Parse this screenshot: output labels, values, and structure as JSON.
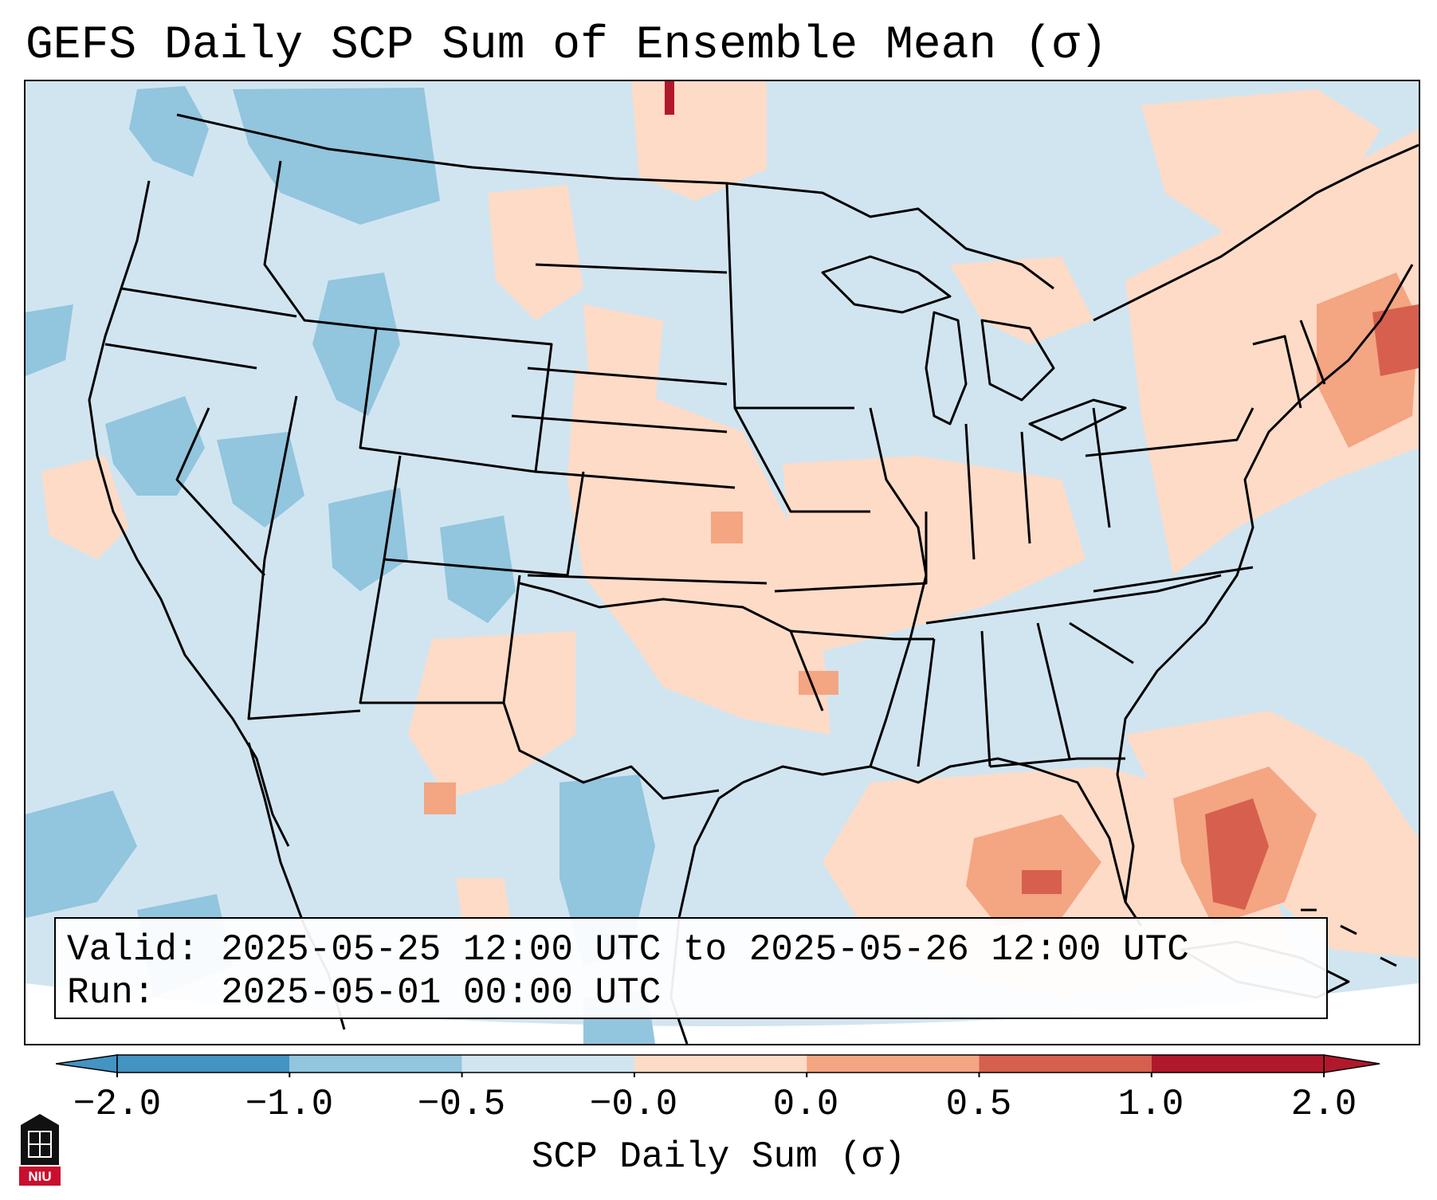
{
  "title": "GEFS Daily SCP Sum of Ensemble Mean (σ)",
  "info": {
    "valid_label": "Valid:",
    "valid_value": "2025-05-25 12:00 UTC to 2025-05-26 12:00 UTC",
    "run_label": "Run:",
    "run_value": "2025-05-01 00:00 UTC"
  },
  "colorbar": {
    "title": "SCP Daily Sum (σ)",
    "ticks": [
      "−2.0",
      "−1.0",
      "−0.5",
      "−0.0",
      "0.0",
      "0.5",
      "1.0",
      "2.0"
    ],
    "bin_colors": [
      "#4393c3",
      "#92c5de",
      "#d1e5f0",
      "#f7f7f7",
      "#fddbc7",
      "#f4a582",
      "#d6604d",
      "#b2182b"
    ],
    "extend": "both"
  },
  "logo": {
    "text": "NIU",
    "colors": {
      "banner": "#c8102e",
      "shield": "#111111"
    }
  },
  "colors": {
    "neutral": "#d1e5f0",
    "neg_light": "#92c5de",
    "pos_light": "#fddbc7",
    "pos_mid": "#f4a582",
    "pos_strong": "#d6604d",
    "pos_max": "#b2182b",
    "boundaries": "#000000"
  }
}
